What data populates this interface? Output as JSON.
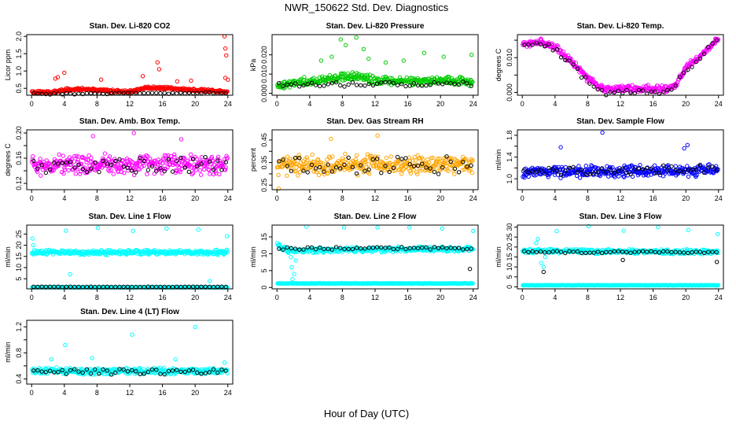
{
  "title": "NWR_150622  Std. Dev. Diagnostics",
  "xlabel": "Hour of Day (UTC)",
  "xticks": [
    0,
    4,
    8,
    12,
    16,
    20,
    24
  ],
  "colors": {
    "black": "#000000",
    "red": "#ff0000",
    "green": "#00cc00",
    "magenta": "#ff00ff",
    "orange": "#ffa500",
    "blue": "#0000ff",
    "cyan": "#00ffff"
  },
  "chart_data": [
    {
      "type": "scatter",
      "title": "Stan. Dev. Li-820 CO2",
      "ylabel": "Licor ppm",
      "xlim": [
        -0.6,
        24.6
      ],
      "ylim": [
        0.3,
        2.05
      ],
      "yticks": [
        0.5,
        1.0,
        1.5,
        2.0
      ],
      "ytick_labels": [
        "0.5",
        "1.0",
        "1.5",
        "2.0"
      ],
      "series": [
        {
          "name": "all data",
          "color": "red",
          "base": [
            [
              0,
              0.38
            ],
            [
              3,
              0.4
            ],
            [
              4,
              0.45
            ],
            [
              6,
              0.48
            ],
            [
              10,
              0.42
            ],
            [
              12,
              0.4
            ],
            [
              14,
              0.52
            ],
            [
              17,
              0.5
            ],
            [
              20,
              0.45
            ],
            [
              24,
              0.4
            ]
          ],
          "spread": 0.05,
          "outliers": [
            [
              23.6,
              2.0
            ],
            [
              23.7,
              1.65
            ],
            [
              23.8,
              1.45
            ],
            [
              23.7,
              0.8
            ],
            [
              24.0,
              0.75
            ],
            [
              15.4,
              1.25
            ],
            [
              15.6,
              1.05
            ],
            [
              4,
              0.95
            ],
            [
              3.2,
              0.82
            ],
            [
              13.6,
              0.85
            ],
            [
              19.5,
              0.72
            ],
            [
              8.5,
              0.75
            ],
            [
              2.9,
              0.78
            ],
            [
              17.8,
              0.7
            ]
          ]
        },
        {
          "name": "hourly",
          "color": "black",
          "base": [
            [
              0,
              0.34
            ],
            [
              24,
              0.37
            ]
          ],
          "spread": 0.02,
          "hourly": true
        }
      ]
    },
    {
      "type": "scatter",
      "title": "Stan. Dev. Li-820 Pressure",
      "ylabel": "kPa",
      "xlim": [
        -0.6,
        24.6
      ],
      "ylim": [
        -0.001,
        0.0305
      ],
      "yticks": [
        0.0,
        0.01,
        0.02
      ],
      "ytick_labels": [
        "0.000",
        "0.010",
        "0.020"
      ],
      "series": [
        {
          "name": "all data",
          "color": "green",
          "base": [
            [
              0,
              0.004
            ],
            [
              3,
              0.006
            ],
            [
              6,
              0.007
            ],
            [
              9,
              0.009
            ],
            [
              12,
              0.007
            ],
            [
              16,
              0.006
            ],
            [
              20,
              0.007
            ],
            [
              24,
              0.006
            ]
          ],
          "spread": 0.0025,
          "outliers": [
            [
              7.8,
              0.028
            ],
            [
              9.7,
              0.029
            ],
            [
              8.4,
              0.025
            ],
            [
              6.7,
              0.019
            ],
            [
              10.6,
              0.023
            ],
            [
              11.2,
              0.018
            ],
            [
              15.5,
              0.017
            ],
            [
              18,
              0.021
            ],
            [
              20.4,
              0.019
            ],
            [
              23.8,
              0.02
            ],
            [
              5.4,
              0.017
            ],
            [
              13.3,
              0.016
            ]
          ]
        },
        {
          "name": "hourly",
          "color": "black",
          "base": [
            [
              0,
              0.0045
            ],
            [
              24,
              0.005
            ]
          ],
          "spread": 0.0012,
          "hourly": true
        }
      ]
    },
    {
      "type": "scatter",
      "title": "Stan. Dev. Li-820 Temp.",
      "ylabel": "degrees C",
      "xlim": [
        -0.6,
        24.6
      ],
      "ylim": [
        -0.0008,
        0.0166
      ],
      "yticks": [
        0.0,
        0.005,
        0.01,
        0.015
      ],
      "ytick_labels": [
        "0.000",
        "",
        "0.010",
        ""
      ],
      "series": [
        {
          "name": "all data",
          "color": "magenta",
          "base": [
            [
              0,
              0.014
            ],
            [
              2,
              0.0145
            ],
            [
              4,
              0.013
            ],
            [
              6,
              0.009
            ],
            [
              8,
              0.004
            ],
            [
              9.5,
              0.0015
            ],
            [
              10,
              0.001
            ],
            [
              18,
              0.001
            ],
            [
              19,
              0.003
            ],
            [
              20,
              0.007
            ],
            [
              22,
              0.011
            ],
            [
              24,
              0.0155
            ]
          ],
          "spread": 0.0012,
          "outliers": []
        },
        {
          "name": "hourly",
          "color": "black",
          "base": [
            [
              0,
              0.013
            ],
            [
              2,
              0.014
            ],
            [
              4,
              0.0125
            ],
            [
              6,
              0.008
            ],
            [
              8,
              0.003
            ],
            [
              9.5,
              0.0
            ],
            [
              18,
              0.0
            ],
            [
              20,
              0.006
            ],
            [
              22,
              0.011
            ],
            [
              24,
              0.015
            ]
          ],
          "spread": 0.0008,
          "hourly": true
        }
      ]
    },
    {
      "type": "scatter",
      "title": "Stan. Dev. Amb. Box Temp.",
      "ylabel": "degrees C",
      "xlim": [
        -0.6,
        24.6
      ],
      "ylim": [
        0.11,
        0.205
      ],
      "yticks": [
        0.12,
        0.14,
        0.16,
        0.18,
        0.2
      ],
      "ytick_labels": [
        "0.12",
        "",
        "0.16",
        "",
        "0.20"
      ],
      "series": [
        {
          "name": "all data",
          "color": "magenta",
          "base": [
            [
              0,
              0.15
            ],
            [
              24,
              0.15
            ]
          ],
          "spread": 0.018,
          "outliers": [
            [
              12.5,
              0.2
            ],
            [
              7.5,
              0.195
            ],
            [
              18.3,
              0.19
            ]
          ]
        },
        {
          "name": "hourly",
          "color": "black",
          "base": [
            [
              0,
              0.148
            ],
            [
              24,
              0.15
            ]
          ],
          "spread": 0.012,
          "hourly": true
        }
      ]
    },
    {
      "type": "scatter",
      "title": "Stan. Dev. Gas Stream RH",
      "ylabel": "percent",
      "xlim": [
        -0.6,
        24.6
      ],
      "ylim": [
        0.23,
        0.495
      ],
      "yticks": [
        0.25,
        0.3,
        0.35,
        0.4,
        0.45
      ],
      "ytick_labels": [
        "0.25",
        "",
        "0.35",
        "",
        "0.45"
      ],
      "series": [
        {
          "name": "all data",
          "color": "orange",
          "base": [
            [
              0,
              0.34
            ],
            [
              24,
              0.34
            ]
          ],
          "spread": 0.05,
          "outliers": [
            [
              0.2,
              0.235
            ],
            [
              6.6,
              0.455
            ],
            [
              12.3,
              0.47
            ]
          ]
        },
        {
          "name": "hourly",
          "color": "black",
          "base": [
            [
              0,
              0.33
            ],
            [
              24,
              0.34
            ]
          ],
          "spread": 0.04,
          "hourly": true
        }
      ]
    },
    {
      "type": "scatter",
      "title": "Stan. Dev. Sample Flow",
      "ylabel": "ml/min",
      "xlim": [
        -0.6,
        24.6
      ],
      "ylim": [
        0.8,
        1.9
      ],
      "yticks": [
        1.0,
        1.2,
        1.4,
        1.6,
        1.8
      ],
      "ytick_labels": [
        "1.0",
        "",
        "1.4",
        "",
        "1.8"
      ],
      "series": [
        {
          "name": "all data",
          "color": "blue",
          "base": [
            [
              0,
              1.12
            ],
            [
              24,
              1.15
            ]
          ],
          "spread": 0.12,
          "outliers": [
            [
              9.8,
              1.85
            ],
            [
              4.7,
              1.58
            ],
            [
              20.2,
              1.62
            ],
            [
              19.8,
              1.56
            ]
          ]
        },
        {
          "name": "hourly",
          "color": "black",
          "base": [
            [
              0,
              1.12
            ],
            [
              24,
              1.2
            ]
          ],
          "spread": 0.08,
          "hourly": true
        }
      ]
    },
    {
      "type": "scatter",
      "title": "Stan. Dev. Line 1 Flow",
      "ylabel": "ml/min",
      "xlim": [
        -0.6,
        24.6
      ],
      "ylim": [
        0.5,
        29
      ],
      "yticks": [
        5,
        10,
        15,
        20,
        25
      ],
      "ytick_labels": [
        "5",
        "10",
        "15",
        "20",
        "25"
      ],
      "series": [
        {
          "name": "all data",
          "color": "cyan",
          "base": [
            [
              0,
              16.8
            ],
            [
              24,
              16.8
            ]
          ],
          "spread": 1.3,
          "outliers": [
            [
              0.1,
              23
            ],
            [
              4.2,
              26.5
            ],
            [
              8.1,
              27.8
            ],
            [
              12.4,
              26.4
            ],
            [
              16.5,
              27.5
            ],
            [
              20.4,
              27
            ],
            [
              23.9,
              24
            ],
            [
              4.7,
              7
            ],
            [
              21.8,
              4
            ],
            [
              0.2,
              20
            ]
          ]
        },
        {
          "name": "cyan baseline",
          "color": "cyan",
          "base": [
            [
              0,
              1.2
            ],
            [
              24,
              1.2
            ]
          ],
          "spread": 0.12,
          "outliers": []
        },
        {
          "name": "hourly",
          "color": "black",
          "base": [
            [
              0,
              1.4
            ],
            [
              24,
              1.4
            ]
          ],
          "spread": 0.1,
          "hourly": true
        }
      ]
    },
    {
      "type": "scatter",
      "title": "Stan. Dev. Line 2 Flow",
      "ylabel": "ml/min",
      "xlim": [
        -0.6,
        24.6
      ],
      "ylim": [
        -0.4,
        18.5
      ],
      "yticks": [
        0,
        5,
        10,
        15
      ],
      "ytick_labels": [
        "0",
        "5",
        "10",
        "15"
      ],
      "series": [
        {
          "name": "all data",
          "color": "cyan",
          "base": [
            [
              0,
              13
            ],
            [
              0.5,
              11.5
            ],
            [
              1.5,
              11
            ],
            [
              24,
              11.5
            ]
          ],
          "spread": 0.9,
          "outliers": [
            [
              8.2,
              17.8
            ],
            [
              12.3,
              17.8
            ],
            [
              16.2,
              17.8
            ],
            [
              20.2,
              17.5
            ],
            [
              24,
              16.8
            ],
            [
              3.6,
              18
            ],
            [
              1.7,
              9
            ],
            [
              1.8,
              6
            ],
            [
              2.1,
              4
            ],
            [
              1.9,
              2.5
            ],
            [
              2.3,
              8
            ]
          ]
        },
        {
          "name": "cyan baseline",
          "color": "cyan",
          "base": [
            [
              0,
              1.2
            ],
            [
              24,
              1.2
            ]
          ],
          "spread": 0.12,
          "outliers": []
        },
        {
          "name": "hourly",
          "color": "black",
          "base": [
            [
              0,
              11.6
            ],
            [
              24,
              11.6
            ]
          ],
          "spread": 0.4,
          "hourly": true,
          "outliers": [
            [
              23.6,
              5.5
            ]
          ]
        }
      ]
    },
    {
      "type": "scatter",
      "title": "Stan. Dev. Line 3 Flow",
      "ylabel": "ml/min",
      "xlim": [
        -0.6,
        24.6
      ],
      "ylim": [
        -1,
        31
      ],
      "yticks": [
        0,
        5,
        10,
        15,
        20,
        25,
        30
      ],
      "ytick_labels": [
        "0",
        "5",
        "10",
        "15",
        "20",
        "25",
        "30"
      ],
      "series": [
        {
          "name": "all data",
          "color": "cyan",
          "base": [
            [
              0,
              18
            ],
            [
              24,
              17.5
            ]
          ],
          "spread": 1.3,
          "outliers": [
            [
              1.7,
              22
            ],
            [
              1.9,
              24
            ],
            [
              2.3,
              12
            ],
            [
              2.6,
              10
            ],
            [
              4.2,
              28
            ],
            [
              8.1,
              30.5
            ],
            [
              12.4,
              28.2
            ],
            [
              16.6,
              30
            ],
            [
              20.3,
              28.5
            ],
            [
              23.9,
              26.5
            ],
            [
              2.8,
              15
            ]
          ]
        },
        {
          "name": "cyan baseline",
          "color": "cyan",
          "base": [
            [
              0,
              0.8
            ],
            [
              24,
              0.8
            ]
          ],
          "spread": 0.12,
          "outliers": []
        },
        {
          "name": "hourly",
          "color": "black",
          "base": [
            [
              0,
              17.5
            ],
            [
              24,
              17.5
            ]
          ],
          "spread": 0.5,
          "hourly": true,
          "outliers": [
            [
              2.6,
              7.5
            ],
            [
              12.3,
              13.5
            ],
            [
              23.8,
              12.5
            ]
          ]
        }
      ]
    },
    {
      "type": "scatter",
      "title": "Stan. Dev. Line 4 (LT) Flow",
      "ylabel": "ml/min",
      "xlim": [
        -0.6,
        24.6
      ],
      "ylim": [
        0.32,
        1.3
      ],
      "yticks": [
        0.4,
        0.6,
        0.8,
        1.0,
        1.2
      ],
      "ytick_labels": [
        "0.4",
        "",
        "0.8",
        "",
        "1.2"
      ],
      "series": [
        {
          "name": "all data",
          "color": "cyan",
          "base": [
            [
              0,
              0.52
            ],
            [
              24,
              0.52
            ]
          ],
          "spread": 0.06,
          "outliers": [
            [
              20,
              1.2
            ],
            [
              12.3,
              1.08
            ],
            [
              4.1,
              0.92
            ],
            [
              2.4,
              0.7
            ],
            [
              7.4,
              0.72
            ],
            [
              17.6,
              0.7
            ],
            [
              23.6,
              0.65
            ]
          ]
        },
        {
          "name": "hourly",
          "color": "black",
          "base": [
            [
              0,
              0.5
            ],
            [
              24,
              0.52
            ]
          ],
          "spread": 0.045,
          "hourly": true
        }
      ]
    }
  ]
}
